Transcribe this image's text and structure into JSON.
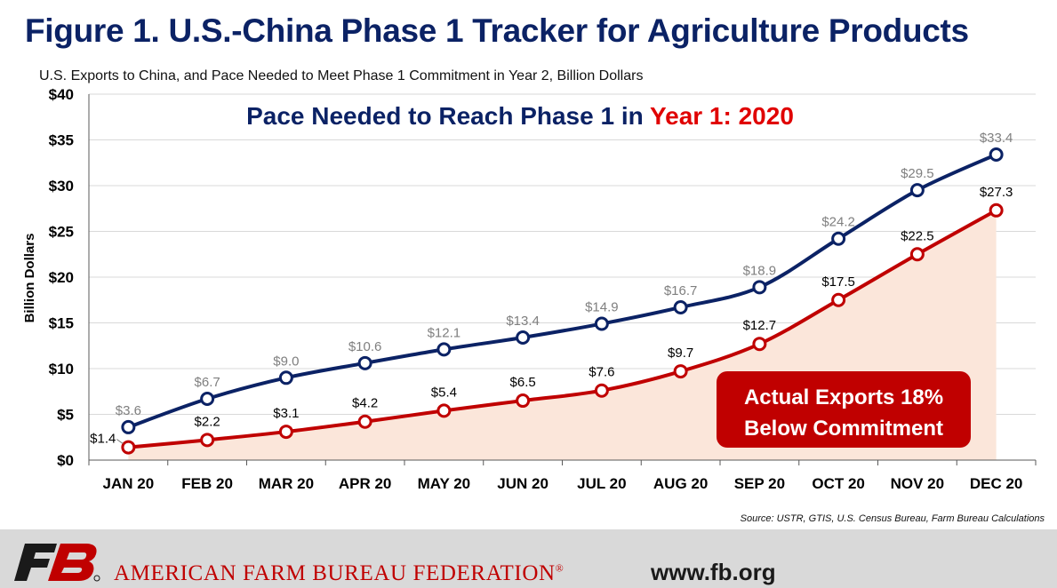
{
  "title": "Figure 1. U.S.-China Phase 1 Tracker for Agriculture Products",
  "subtitle": "U.S. Exports to China, and Pace Needed to Meet Phase 1 Commitment in Year 2, Billion Dollars",
  "headline": {
    "part1": "Pace Needed to Reach Phase 1 in ",
    "part2": "Year 1: 2020"
  },
  "callout": {
    "line1": "Actual Exports 18%",
    "line2": "Below Commitment"
  },
  "source": "Source: USTR, GTIS, U.S. Census Bureau, Farm Bureau Calculations",
  "footer": {
    "org": "AMERICAN FARM BUREAU FEDERATION",
    "reg": "®",
    "url": "www.fb.org",
    "logo_text": "FB"
  },
  "colors": {
    "title": "#0b2265",
    "pace_line": "#0b2265",
    "actual_line": "#c00000",
    "fill": "#fbe6da",
    "callout_bg": "#c00000",
    "pace_label": "#7f7f7f",
    "actual_label": "#000000"
  },
  "chart_data": {
    "type": "line",
    "categories": [
      "JAN 20",
      "FEB 20",
      "MAR 20",
      "APR 20",
      "MAY 20",
      "JUN 20",
      "JUL 20",
      "AUG 20",
      "SEP 20",
      "OCT 20",
      "NOV 20",
      "DEC 20"
    ],
    "series": [
      {
        "values": [
          3.6,
          6.7,
          9.0,
          10.6,
          12.1,
          13.4,
          14.9,
          16.7,
          18.9,
          24.2,
          29.5,
          33.4
        ],
        "labels": [
          "$3.6",
          "$6.7",
          "$9.0",
          "$10.6",
          "$12.1",
          "$13.4",
          "$14.9",
          "$16.7",
          "$18.9",
          "$24.2",
          "$29.5",
          "$33.4"
        ]
      },
      {
        "values": [
          1.4,
          2.2,
          3.1,
          4.2,
          5.4,
          6.5,
          7.6,
          9.7,
          12.7,
          17.5,
          22.5,
          27.3
        ],
        "labels": [
          "$1.4",
          "$2.2",
          "$3.1",
          "$4.2",
          "$5.4",
          "$6.5",
          "$7.6",
          "$9.7",
          "$12.7",
          "$17.5",
          "$22.5",
          "$27.3"
        ]
      }
    ],
    "ylabel": "Billion Dollars",
    "ylim": [
      0,
      40
    ],
    "yticks": [
      "$0",
      "$5",
      "$10",
      "$15",
      "$20",
      "$25",
      "$30",
      "$35",
      "$40"
    ],
    "grid": true
  }
}
